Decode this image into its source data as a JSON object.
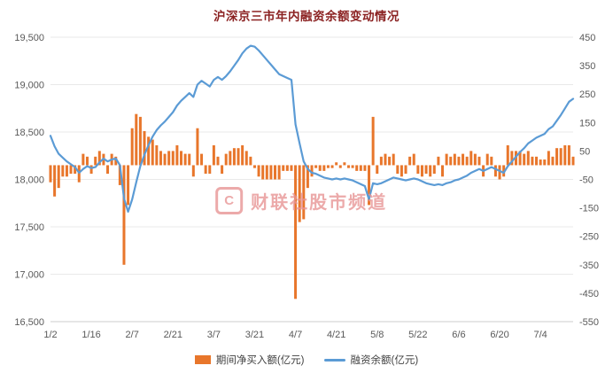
{
  "title": "沪深京三市年内融资余额变动情况",
  "watermark": {
    "logo_letter": "C",
    "text": "财联社股市频道"
  },
  "legend": [
    {
      "label": "期间净买入额(亿元)",
      "color": "#E8762B",
      "type": "bar"
    },
    {
      "label": "融资余额(亿元)",
      "color": "#5B9BD5",
      "type": "line"
    }
  ],
  "colors": {
    "bar": "#E8762B",
    "line": "#5B9BD5",
    "grid": "#e9e9e9",
    "axis_text": "#595959",
    "title": "#8b2222",
    "watermark": "#e89595"
  },
  "chart_data": {
    "type": "combo",
    "title": "沪深京三市年内融资余额变动情况",
    "grid": "horizontal",
    "legend_position": "bottom",
    "x_label_indices": [
      0,
      10,
      20,
      30,
      40,
      50,
      60,
      70,
      80,
      90,
      100,
      110,
      120
    ],
    "x_labels_shown": [
      "1/2",
      "1/16",
      "2/7",
      "2/21",
      "3/7",
      "3/21",
      "4/7",
      "4/21",
      "5/8",
      "5/22",
      "6/6",
      "6/20",
      "7/4"
    ],
    "x": [
      "1/2",
      "1/3",
      "1/6",
      "1/7",
      "1/8",
      "1/9",
      "1/10",
      "1/13",
      "1/14",
      "1/15",
      "1/16",
      "1/17",
      "1/20",
      "1/21",
      "1/22",
      "1/23",
      "1/24",
      "1/27",
      "2/5",
      "2/6",
      "2/7",
      "2/10",
      "2/11",
      "2/12",
      "2/13",
      "2/14",
      "2/17",
      "2/18",
      "2/19",
      "2/20",
      "2/21",
      "2/24",
      "2/25",
      "2/26",
      "2/27",
      "2/28",
      "3/3",
      "3/4",
      "3/5",
      "3/6",
      "3/7",
      "3/10",
      "3/11",
      "3/12",
      "3/13",
      "3/14",
      "3/17",
      "3/18",
      "3/19",
      "3/20",
      "3/21",
      "3/24",
      "3/25",
      "3/26",
      "3/27",
      "3/28",
      "3/31",
      "4/1",
      "4/2",
      "4/3",
      "4/7",
      "4/8",
      "4/9",
      "4/10",
      "4/11",
      "4/14",
      "4/15",
      "4/16",
      "4/17",
      "4/18",
      "4/21",
      "4/22",
      "4/23",
      "4/24",
      "4/25",
      "4/28",
      "4/29",
      "4/30",
      "5/6",
      "5/7",
      "5/8",
      "5/9",
      "5/12",
      "5/13",
      "5/14",
      "5/15",
      "5/16",
      "5/19",
      "5/20",
      "5/21",
      "5/22",
      "5/23",
      "5/26",
      "5/27",
      "5/28",
      "5/29",
      "5/30",
      "6/3",
      "6/4",
      "6/5",
      "6/6",
      "6/9",
      "6/10",
      "6/11",
      "6/12",
      "6/13",
      "6/16",
      "6/17",
      "6/18",
      "6/19",
      "6/20",
      "6/23",
      "6/24",
      "6/25",
      "6/26",
      "6/27",
      "6/30",
      "7/1",
      "7/2",
      "7/3",
      "7/4",
      "7/7",
      "7/8",
      "7/9",
      "7/10",
      "7/11",
      "7/14",
      "7/15",
      "7/16"
    ],
    "series": [
      {
        "name": "期间净买入额(亿元)",
        "type": "bar",
        "axis": "right",
        "color": "#E8762B",
        "values": [
          -60,
          -110,
          -80,
          -40,
          -40,
          -30,
          -30,
          -60,
          40,
          30,
          -30,
          30,
          50,
          40,
          -30,
          40,
          30,
          -70,
          -350,
          -140,
          130,
          180,
          170,
          120,
          100,
          90,
          70,
          50,
          40,
          50,
          50,
          70,
          50,
          40,
          40,
          -40,
          130,
          40,
          -30,
          -30,
          70,
          30,
          -30,
          40,
          50,
          60,
          60,
          70,
          50,
          30,
          -10,
          -40,
          -50,
          -50,
          -50,
          -50,
          -50,
          -20,
          -20,
          -20,
          -470,
          -200,
          -190,
          -80,
          -40,
          -10,
          -20,
          -20,
          -10,
          -10,
          10,
          -10,
          10,
          -10,
          -10,
          -20,
          -20,
          -20,
          -140,
          170,
          -30,
          30,
          40,
          30,
          40,
          -30,
          -40,
          -30,
          30,
          40,
          -30,
          -40,
          -30,
          -40,
          -30,
          30,
          -40,
          40,
          30,
          40,
          30,
          40,
          30,
          50,
          40,
          30,
          -40,
          40,
          30,
          -40,
          -50,
          -40,
          70,
          50,
          50,
          50,
          40,
          50,
          30,
          30,
          20,
          20,
          50,
          30,
          60,
          60,
          70,
          70,
          30
        ]
      },
      {
        "name": "融资余额(亿元)",
        "type": "line",
        "axis": "left",
        "color": "#5B9BD5",
        "values": [
          18460,
          18350,
          18270,
          18230,
          18190,
          18160,
          18130,
          18070,
          18110,
          18140,
          18120,
          18130,
          18180,
          18220,
          18190,
          18210,
          18220,
          18150,
          17800,
          17660,
          17790,
          17970,
          18140,
          18260,
          18360,
          18450,
          18520,
          18570,
          18610,
          18660,
          18710,
          18780,
          18830,
          18870,
          18910,
          18870,
          19000,
          19040,
          19010,
          18980,
          19050,
          19080,
          19050,
          19090,
          19140,
          19200,
          19260,
          19330,
          19380,
          19410,
          19400,
          19360,
          19310,
          19260,
          19210,
          19160,
          19110,
          19090,
          19070,
          19050,
          18580,
          18380,
          18190,
          18110,
          18070,
          18060,
          18040,
          18020,
          18010,
          18000,
          18010,
          18000,
          18010,
          18000,
          17990,
          17970,
          17950,
          17930,
          17790,
          17960,
          17950,
          17960,
          17980,
          18000,
          18020,
          18010,
          18000,
          17990,
          18000,
          18010,
          18000,
          17980,
          17960,
          17950,
          17940,
          17950,
          17940,
          17960,
          17970,
          17990,
          18000,
          18020,
          18040,
          18070,
          18090,
          18110,
          18090,
          18110,
          18130,
          18110,
          18090,
          18070,
          18140,
          18190,
          18240,
          18290,
          18330,
          18380,
          18410,
          18440,
          18460,
          18480,
          18530,
          18560,
          18620,
          18680,
          18750,
          18820,
          18850
        ]
      }
    ],
    "left_axis": {
      "min": 16500,
      "max": 19500,
      "ticks": [
        19500,
        19000,
        18500,
        18000,
        17500,
        17000,
        16500
      ],
      "tick_labels": [
        "19,500",
        "19,000",
        "18,500",
        "18,000",
        "17,500",
        "17,000",
        "16,500"
      ]
    },
    "right_axis": {
      "min": -550,
      "max": 450,
      "ticks": [
        450,
        350,
        250,
        150,
        50,
        -50,
        -150,
        -250,
        -350,
        -450,
        -550
      ],
      "tick_labels": [
        "450",
        "350",
        "250",
        "150",
        "50",
        "-50",
        "-150",
        "-250",
        "-350",
        "-450",
        "-550"
      ]
    }
  }
}
